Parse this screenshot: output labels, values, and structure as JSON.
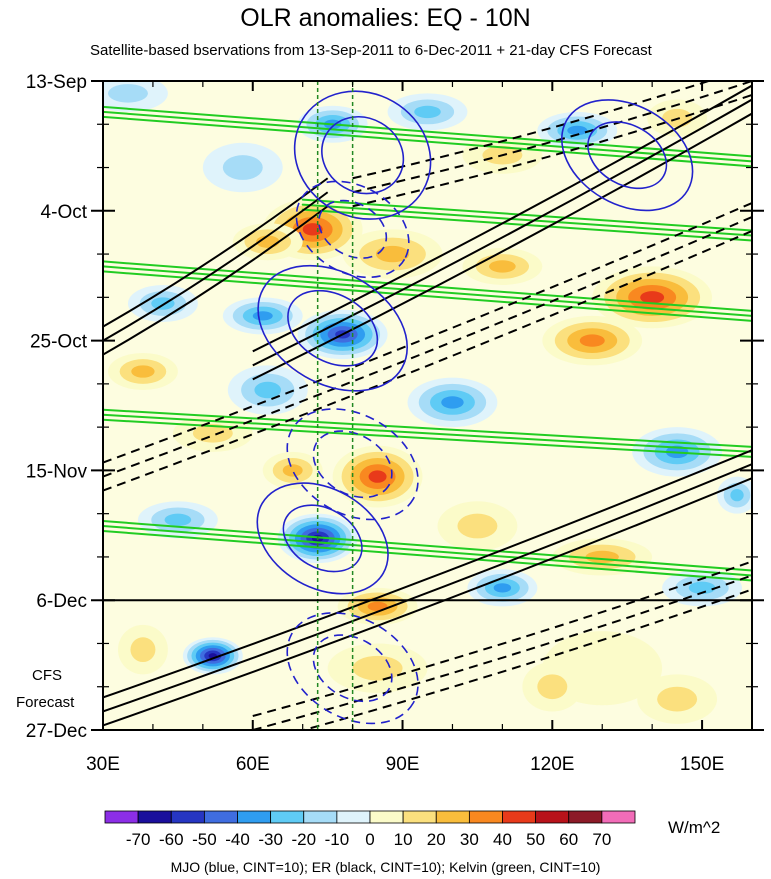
{
  "title": "OLR anomalies: EQ - 10N",
  "subtitle": "Satellite-based bservations from 13-Sep-2011 to 6-Dec-2011 + 21-day CFS Forecast",
  "forecast_label": [
    "CFS",
    "Forecast"
  ],
  "units": "W/m^2",
  "footer": "MJO (blue, CINT=10); ER (black, CINT=10); Kelvin (green, CINT=10)",
  "colors": {
    "mjo": "#2222cc",
    "er": "#000000",
    "kelvin": "#22cc22",
    "reference_lines": "#228822"
  },
  "chart_data": {
    "type": "heatmap",
    "x_label": "",
    "y_label": "",
    "x_range": [
      30,
      160
    ],
    "x_ticks": [
      {
        "value": 30,
        "label": "30E"
      },
      {
        "value": 60,
        "label": "60E"
      },
      {
        "value": 90,
        "label": "90E"
      },
      {
        "value": 120,
        "label": "120E"
      },
      {
        "value": 150,
        "label": "150E"
      }
    ],
    "y_range_days": [
      0,
      105
    ],
    "y_ticks": [
      {
        "day": 0,
        "label": "13-Sep"
      },
      {
        "day": 21,
        "label": "4-Oct"
      },
      {
        "day": 42,
        "label": "25-Oct"
      },
      {
        "day": 63,
        "label": "15-Nov"
      },
      {
        "day": 84,
        "label": "6-Dec"
      },
      {
        "day": 105,
        "label": "27-Dec"
      }
    ],
    "forecast_start_day": 84,
    "reference_longitudes": [
      73,
      80
    ],
    "colorbar": {
      "labels": [
        "-70",
        "-60",
        "-50",
        "-40",
        "-30",
        "-20",
        "-10",
        "0",
        "10",
        "20",
        "30",
        "40",
        "50",
        "60",
        "70"
      ],
      "colors": [
        "#8c2ee6",
        "#1a0f9c",
        "#2636c2",
        "#3f6de0",
        "#2f9df0",
        "#5fcbf5",
        "#a6dcf7",
        "#dff3fb",
        "#fbfbc9",
        "#fbe07e",
        "#f9bd3c",
        "#f98820",
        "#e83a1a",
        "#b8121a",
        "#8c1a28",
        "#f26cb8"
      ]
    },
    "anomaly_features": [
      {
        "lon": 35,
        "day": 2,
        "value": -20,
        "rlon": 8,
        "rday": 3
      },
      {
        "lon": 76,
        "day": 7,
        "value": -40,
        "rlon": 7,
        "rday": 3
      },
      {
        "lon": 95,
        "day": 5,
        "value": -30,
        "rlon": 8,
        "rday": 3
      },
      {
        "lon": 125,
        "day": 8,
        "value": -40,
        "rlon": 8,
        "rday": 3
      },
      {
        "lon": 145,
        "day": 6,
        "value": 20,
        "rlon": 6,
        "rday": 3
      },
      {
        "lon": 110,
        "day": 12,
        "value": 20,
        "rlon": 8,
        "rday": 3
      },
      {
        "lon": 58,
        "day": 14,
        "value": -20,
        "rlon": 8,
        "rday": 4
      },
      {
        "lon": 72,
        "day": 24,
        "value": 50,
        "rlon": 10,
        "rday": 5
      },
      {
        "lon": 88,
        "day": 28,
        "value": 30,
        "rlon": 10,
        "rday": 4
      },
      {
        "lon": 63,
        "day": 26,
        "value": 30,
        "rlon": 7,
        "rday": 3
      },
      {
        "lon": 110,
        "day": 30,
        "value": 30,
        "rlon": 8,
        "rday": 3
      },
      {
        "lon": 140,
        "day": 35,
        "value": 50,
        "rlon": 12,
        "rday": 5
      },
      {
        "lon": 128,
        "day": 42,
        "value": 40,
        "rlon": 10,
        "rday": 4
      },
      {
        "lon": 78,
        "day": 41,
        "value": -60,
        "rlon": 9,
        "rday": 4
      },
      {
        "lon": 62,
        "day": 38,
        "value": -40,
        "rlon": 8,
        "rday": 3
      },
      {
        "lon": 42,
        "day": 36,
        "value": -30,
        "rlon": 7,
        "rday": 3
      },
      {
        "lon": 38,
        "day": 47,
        "value": 30,
        "rlon": 7,
        "rday": 3
      },
      {
        "lon": 63,
        "day": 50,
        "value": -30,
        "rlon": 8,
        "rday": 4
      },
      {
        "lon": 100,
        "day": 52,
        "value": -40,
        "rlon": 9,
        "rday": 4
      },
      {
        "lon": 52,
        "day": 57,
        "value": 20,
        "rlon": 8,
        "rday": 3
      },
      {
        "lon": 85,
        "day": 64,
        "value": 50,
        "rlon": 9,
        "rday": 5
      },
      {
        "lon": 68,
        "day": 63,
        "value": 30,
        "rlon": 6,
        "rday": 3
      },
      {
        "lon": 145,
        "day": 60,
        "value": -40,
        "rlon": 9,
        "rday": 4
      },
      {
        "lon": 157,
        "day": 67,
        "value": -30,
        "rlon": 4,
        "rday": 3
      },
      {
        "lon": 45,
        "day": 71,
        "value": -30,
        "rlon": 8,
        "rday": 3
      },
      {
        "lon": 73,
        "day": 74,
        "value": -70,
        "rlon": 8,
        "rday": 4
      },
      {
        "lon": 105,
        "day": 72,
        "value": 20,
        "rlon": 8,
        "rday": 4
      },
      {
        "lon": 130,
        "day": 77,
        "value": 30,
        "rlon": 10,
        "rday": 3
      },
      {
        "lon": 85,
        "day": 85,
        "value": 40,
        "rlon": 8,
        "rday": 3
      },
      {
        "lon": 110,
        "day": 82,
        "value": -40,
        "rlon": 7,
        "rday": 3
      },
      {
        "lon": 150,
        "day": 82,
        "value": -30,
        "rlon": 8,
        "rday": 3
      },
      {
        "lon": 52,
        "day": 93,
        "value": -70,
        "rlon": 6,
        "rday": 3
      },
      {
        "lon": 38,
        "day": 92,
        "value": 20,
        "rlon": 5,
        "rday": 4
      },
      {
        "lon": 85,
        "day": 95,
        "value": 20,
        "rlon": 10,
        "rday": 4
      },
      {
        "lon": 130,
        "day": 95,
        "value": 10,
        "rlon": 12,
        "rday": 6
      },
      {
        "lon": 145,
        "day": 100,
        "value": 20,
        "rlon": 8,
        "rday": 4
      },
      {
        "lon": 120,
        "day": 98,
        "value": 20,
        "rlon": 6,
        "rday": 4
      }
    ],
    "mjo_contours": [
      {
        "lon": 82,
        "day": 12,
        "value": -20,
        "rlon": 14,
        "rday": 10
      },
      {
        "lon": 76,
        "day": 40,
        "value": -30,
        "rlon": 16,
        "rday": 9
      },
      {
        "lon": 74,
        "day": 74,
        "value": -30,
        "rlon": 14,
        "rday": 8
      },
      {
        "lon": 135,
        "day": 12,
        "value": -20,
        "rlon": 14,
        "rday": 8
      },
      {
        "lon": 80,
        "day": 24,
        "value": 20,
        "rlon": 12,
        "rday": 7
      },
      {
        "lon": 80,
        "day": 62,
        "value": 20,
        "rlon": 14,
        "rday": 8
      },
      {
        "lon": 80,
        "day": 95,
        "value": 20,
        "rlon": 14,
        "rday": 8
      }
    ],
    "er_bands": [
      {
        "lon0": 30,
        "day0": 102,
        "lon1": 160,
        "day1": 62,
        "sign": 1
      },
      {
        "lon0": 30,
        "day0": 64,
        "lon1": 160,
        "day1": 22,
        "sign": -1
      },
      {
        "lon0": 60,
        "day0": 46,
        "lon1": 160,
        "day1": 3,
        "sign": 1
      },
      {
        "lon0": 80,
        "day0": 18,
        "lon1": 160,
        "day1": 0,
        "sign": -1
      },
      {
        "lon0": 30,
        "day0": 42,
        "lon1": 75,
        "day1": 18,
        "sign": 1
      },
      {
        "lon0": 60,
        "day0": 105,
        "lon1": 160,
        "day1": 80,
        "sign": -1
      }
    ],
    "kelvin_bands": [
      {
        "lon0": 30,
        "day0": 5,
        "lon1": 160,
        "day1": 13
      },
      {
        "lon0": 70,
        "day0": 20,
        "lon1": 160,
        "day1": 25
      },
      {
        "lon0": 30,
        "day0": 30,
        "lon1": 160,
        "day1": 38
      },
      {
        "lon0": 30,
        "day0": 54,
        "lon1": 160,
        "day1": 60
      },
      {
        "lon0": 30,
        "day0": 72,
        "lon1": 160,
        "day1": 80
      }
    ]
  }
}
